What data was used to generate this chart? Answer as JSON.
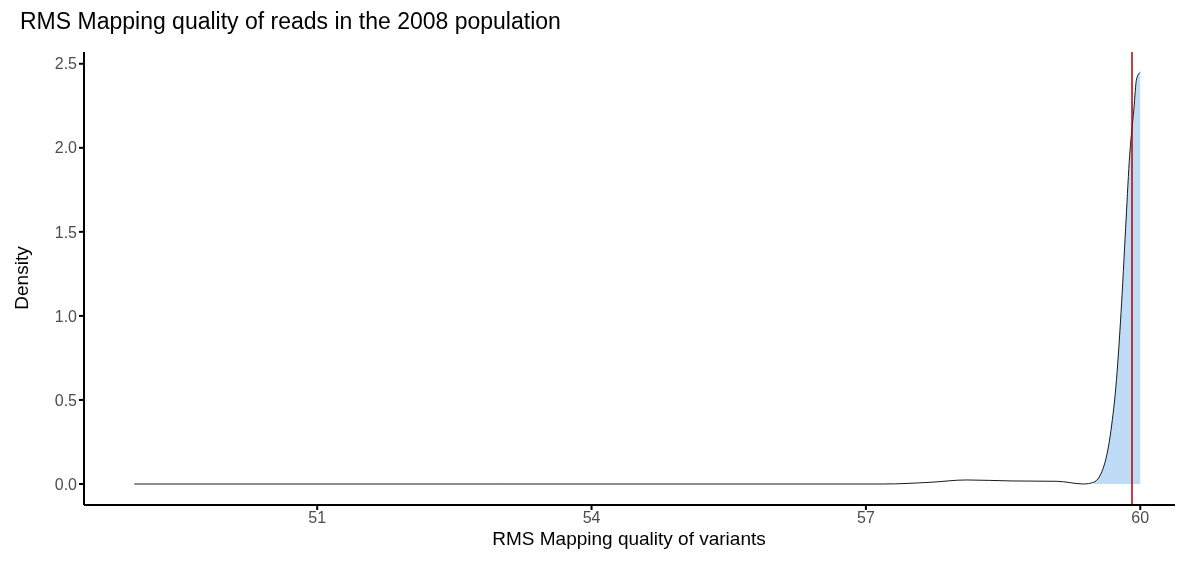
{
  "chart_data": {
    "type": "line",
    "title": "RMS Mapping quality of reads in the 2008 population",
    "xlabel": "RMS Mapping quality of variants",
    "ylabel": "Density",
    "xlim": [
      48.45,
      60.38
    ],
    "xticks": [
      51,
      54,
      57,
      60
    ],
    "ylim": [
      -0.125,
      2.57
    ],
    "yticks": [
      {
        "value": 0,
        "label": "0.0"
      },
      0.5,
      {
        "value": 1,
        "label": "1.0"
      },
      1.5,
      {
        "value": 2,
        "label": "2.0"
      },
      2.5
    ],
    "grid": false,
    "legend": false,
    "series": [
      {
        "type": "area",
        "color": "#bfdcf7",
        "x": [
          59.49,
          59.61,
          59.68,
          59.74,
          59.79,
          59.84,
          59.88,
          59.93,
          59.96,
          60.0
        ],
        "values": [
          0.01,
          0.12,
          0.32,
          0.62,
          1.02,
          1.52,
          1.92,
          2.23,
          2.41,
          2.45
        ]
      },
      {
        "color": "#1a1a1a",
        "x": [
          49.0,
          53.0,
          57.2,
          57.7,
          58.1,
          58.6,
          59.09,
          59.38,
          59.49,
          59.61,
          59.68,
          59.74,
          59.79,
          59.84,
          59.88,
          59.93,
          59.96,
          60.0
        ],
        "values": [
          0.0,
          0.0,
          0.0,
          0.01,
          0.024,
          0.018,
          0.016,
          0.0,
          0.01,
          0.12,
          0.32,
          0.62,
          1.02,
          1.52,
          1.92,
          2.23,
          2.41,
          2.45
        ]
      }
    ],
    "ref_lines": [
      {
        "axis": "x",
        "value": 59.91,
        "color": "#b30000"
      }
    ]
  }
}
